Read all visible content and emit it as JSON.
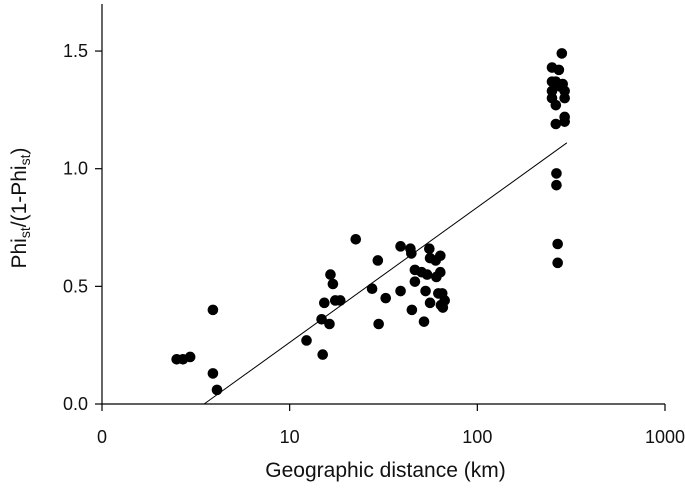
{
  "chart_data": {
    "type": "scatter",
    "title": "",
    "xlabel": "Geographic distance (km)",
    "ylabel_parts": [
      "Phi",
      "st",
      "/(1-Phi",
      "st",
      ")"
    ],
    "x_scale": "log",
    "xlim": [
      1,
      1000
    ],
    "ylim": [
      0,
      1.7
    ],
    "x_ticks": [
      1,
      10,
      100,
      1000
    ],
    "x_tick_labels": [
      "0",
      "10",
      "100",
      "1000"
    ],
    "y_ticks": [
      0,
      0.5,
      1,
      1.5
    ],
    "y_tick_labels": [
      "0.0",
      "0.5",
      "1.0",
      "1.5"
    ],
    "grid": false,
    "regression_line": {
      "x": [
        3.5,
        300
      ],
      "y": [
        0,
        1.11
      ]
    },
    "series": [
      {
        "marker": "filled-circle",
        "color": "#000000",
        "points": [
          [
            2.5,
            0.19
          ],
          [
            2.7,
            0.19
          ],
          [
            2.95,
            0.2
          ],
          [
            3.9,
            0.4
          ],
          [
            3.9,
            0.13
          ],
          [
            4.1,
            0.06
          ],
          [
            12.3,
            0.27
          ],
          [
            14.8,
            0.36
          ],
          [
            15.0,
            0.21
          ],
          [
            15.3,
            0.43
          ],
          [
            16.3,
            0.34
          ],
          [
            16.5,
            0.55
          ],
          [
            17.0,
            0.51
          ],
          [
            17.5,
            0.44
          ],
          [
            18.6,
            0.44
          ],
          [
            22.5,
            0.7
          ],
          [
            27.5,
            0.49
          ],
          [
            29.5,
            0.61
          ],
          [
            29.8,
            0.34
          ],
          [
            32.5,
            0.45
          ],
          [
            39.0,
            0.67
          ],
          [
            39.0,
            0.48
          ],
          [
            44.0,
            0.66
          ],
          [
            44.5,
            0.64
          ],
          [
            44.8,
            0.4
          ],
          [
            46.5,
            0.57
          ],
          [
            46.5,
            0.52
          ],
          [
            50.5,
            0.56
          ],
          [
            52.0,
            0.35
          ],
          [
            53.0,
            0.48
          ],
          [
            54.0,
            0.55
          ],
          [
            55.5,
            0.66
          ],
          [
            56.0,
            0.62
          ],
          [
            56.0,
            0.43
          ],
          [
            60.0,
            0.61
          ],
          [
            60.5,
            0.54
          ],
          [
            62.0,
            0.47
          ],
          [
            63.5,
            0.63
          ],
          [
            63.5,
            0.56
          ],
          [
            64.0,
            0.42
          ],
          [
            65.0,
            0.47
          ],
          [
            65.5,
            0.41
          ],
          [
            67.0,
            0.44
          ],
          [
            250,
            1.43
          ],
          [
            250,
            1.37
          ],
          [
            250,
            1.33
          ],
          [
            250,
            1.3
          ],
          [
            262,
            1.37
          ],
          [
            262,
            1.27
          ],
          [
            262,
            1.19
          ],
          [
            264,
            0.98
          ],
          [
            264,
            0.93
          ],
          [
            268,
            0.68
          ],
          [
            268,
            0.6
          ],
          [
            272,
            1.42
          ],
          [
            276,
            1.35
          ],
          [
            282,
            1.49
          ],
          [
            285,
            1.36
          ],
          [
            292,
            1.33
          ],
          [
            292,
            1.3
          ],
          [
            292,
            1.22
          ],
          [
            292,
            1.2
          ]
        ]
      }
    ]
  }
}
